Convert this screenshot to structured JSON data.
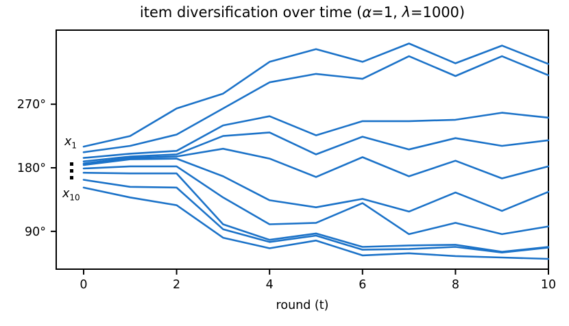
{
  "title": {
    "pre": "item diversification over time (",
    "alpha": "α",
    "mid": "=1, ",
    "lambda": "λ",
    "post": "=1000)"
  },
  "annotations": {
    "first": {
      "base": "x",
      "sub": "1"
    },
    "vdots": "⋮",
    "last": {
      "base": "x",
      "sub": "10"
    }
  },
  "colors": {
    "line": "#1b72c8",
    "axis": "#000000",
    "background": "#ffffff"
  },
  "chart_data": {
    "type": "line",
    "title": "item diversification over time (α=1, λ=1000)",
    "xlabel": "round (t)",
    "ylabel": "",
    "unit": "degrees",
    "grid": false,
    "legend": "none",
    "x": [
      0,
      1,
      2,
      3,
      4,
      5,
      6,
      7,
      8,
      9,
      10
    ],
    "xticks": [
      0,
      2,
      4,
      6,
      8,
      10
    ],
    "ytick_values": [
      90,
      180,
      270
    ],
    "ytick_labels": [
      "90°",
      "180°",
      "270°"
    ],
    "xlim": [
      -0.6,
      10
    ],
    "ylim": [
      37,
      377
    ],
    "series": [
      {
        "name": "x1",
        "values": [
          210,
          225,
          264,
          285,
          330,
          348,
          330,
          356,
          328,
          353,
          327
        ]
      },
      {
        "name": "x2",
        "values": [
          202,
          211,
          227,
          264,
          301,
          313,
          306,
          338,
          310,
          338,
          311
        ]
      },
      {
        "name": "x3",
        "values": [
          194,
          200,
          204,
          240,
          253,
          226,
          246,
          246,
          248,
          258,
          251
        ]
      },
      {
        "name": "x4",
        "values": [
          189,
          196,
          199,
          225,
          230,
          199,
          224,
          206,
          222,
          211,
          219
        ]
      },
      {
        "name": "x5",
        "values": [
          186,
          194,
          196,
          207,
          193,
          167,
          195,
          168,
          190,
          165,
          182
        ]
      },
      {
        "name": "x6",
        "values": [
          184,
          192,
          193,
          168,
          134,
          124,
          136,
          118,
          145,
          119,
          146
        ]
      },
      {
        "name": "x7",
        "values": [
          179,
          182,
          182,
          138,
          100,
          102,
          130,
          86,
          102,
          86,
          97
        ]
      },
      {
        "name": "x8",
        "values": [
          173,
          172,
          172,
          100,
          78,
          87,
          68,
          70,
          71,
          61,
          68
        ]
      },
      {
        "name": "x9",
        "values": [
          163,
          153,
          152,
          93,
          75,
          84,
          64,
          65,
          68,
          60,
          67
        ]
      },
      {
        "name": "x10",
        "values": [
          152,
          138,
          127,
          81,
          66,
          77,
          56,
          59,
          55,
          53,
          51
        ]
      }
    ]
  }
}
